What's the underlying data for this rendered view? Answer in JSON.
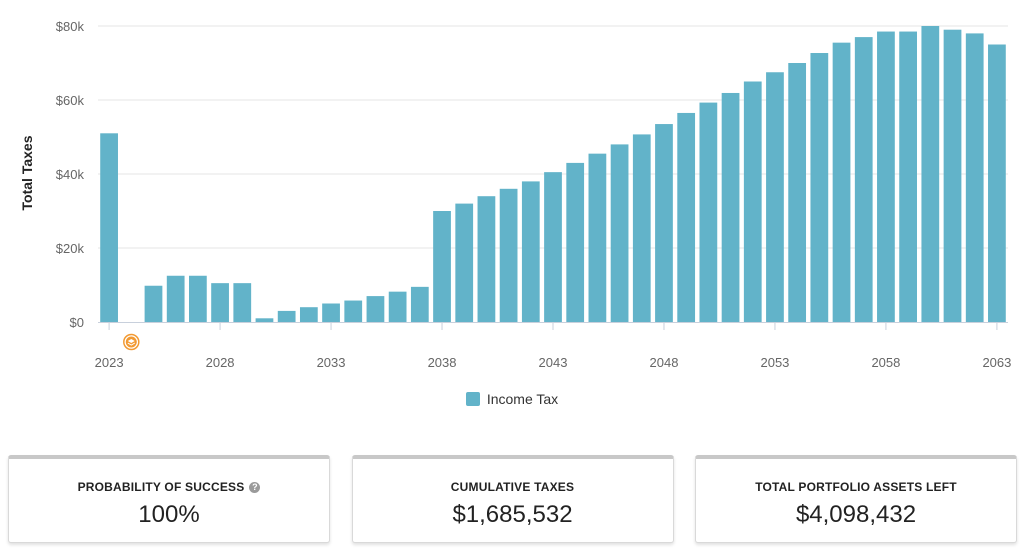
{
  "chart_data": {
    "type": "bar",
    "ylabel": "Total Taxes",
    "xlabel": "",
    "ylim": [
      0,
      80000
    ],
    "yticks": [
      0,
      20000,
      40000,
      60000,
      80000
    ],
    "ytick_labels": [
      "$0",
      "$20k",
      "$40k",
      "$60k",
      "$80k"
    ],
    "xtick_labels": [
      "2023",
      "2028",
      "2033",
      "2038",
      "2043",
      "2048",
      "2053",
      "2058",
      "2063"
    ],
    "grid": true,
    "legend_position": "bottom",
    "categories": [
      2023,
      2024,
      2025,
      2026,
      2027,
      2028,
      2029,
      2030,
      2031,
      2032,
      2033,
      2034,
      2035,
      2036,
      2037,
      2038,
      2039,
      2040,
      2041,
      2042,
      2043,
      2044,
      2045,
      2046,
      2047,
      2048,
      2049,
      2050,
      2051,
      2052,
      2053,
      2054,
      2055,
      2056,
      2057,
      2058,
      2059,
      2060,
      2061,
      2062,
      2063
    ],
    "series": [
      {
        "name": "Income Tax",
        "color": "#62b3c9",
        "values": [
          51000,
          0,
          9800,
          12500,
          12500,
          10500,
          10500,
          1000,
          3000,
          4000,
          5000,
          5800,
          7000,
          8200,
          9500,
          30000,
          32000,
          34000,
          36000,
          38000,
          40500,
          43000,
          45500,
          48000,
          50700,
          53500,
          56500,
          59300,
          61900,
          65000,
          67500,
          70000,
          72700,
          75500,
          77000,
          78500,
          78500,
          80000,
          79000,
          78000,
          75000
        ]
      }
    ],
    "annotation_marker": {
      "category": 2024,
      "icon": "layers-icon",
      "color": "#f29a33"
    }
  },
  "cards": [
    {
      "label": "PROBABILITY OF SUCCESS",
      "value": "100%",
      "help_icon": "help-circle-icon"
    },
    {
      "label": "CUMULATIVE TAXES",
      "value": "$1,685,532"
    },
    {
      "label": "TOTAL PORTFOLIO ASSETS LEFT",
      "value": "$4,098,432"
    }
  ]
}
